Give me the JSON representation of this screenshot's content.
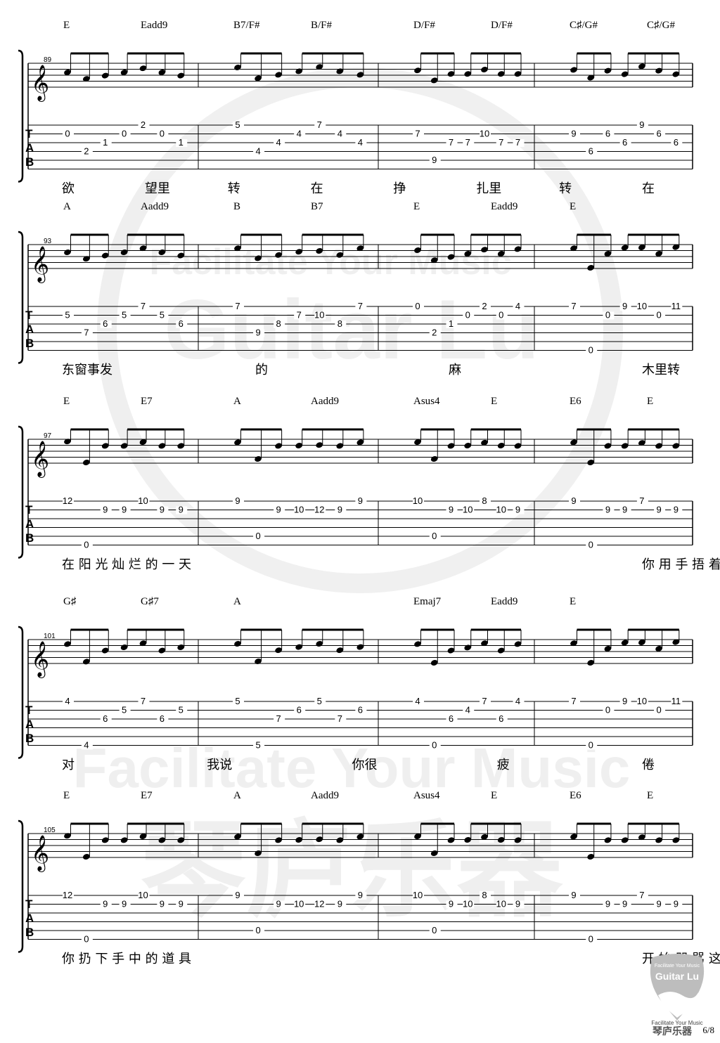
{
  "systems": [
    {
      "bar_start": "89",
      "chords": [
        "E",
        "Eadd9",
        "B7/F#",
        "B/F#",
        "D/F#",
        "D/F#",
        "C♯/G#",
        "C♯/G#"
      ],
      "tab": [
        {
          "s": 1,
          "f": "0"
        },
        {
          "s": 3,
          "f": "2"
        },
        {
          "s": 2,
          "f": "1"
        },
        {
          "s": 1,
          "f": "0"
        },
        {
          "s": 0,
          "f": "2"
        },
        {
          "s": 1,
          "f": "0"
        },
        {
          "s": 2,
          "f": "1"
        },
        {
          "s": 0,
          "f": "5"
        },
        {
          "s": 3,
          "f": "4"
        },
        {
          "s": 2,
          "f": "4"
        },
        {
          "s": 1,
          "f": "4"
        },
        {
          "s": 0,
          "f": "7"
        },
        {
          "s": 1,
          "f": "4"
        },
        {
          "s": 2,
          "f": "4"
        },
        {
          "s": 1,
          "f": "7"
        },
        {
          "s": 4,
          "f": "9"
        },
        {
          "s": 2,
          "f": "7"
        },
        {
          "s": 2,
          "f": "7"
        },
        {
          "s": 1,
          "f": "10"
        },
        {
          "s": 2,
          "f": "7"
        },
        {
          "s": 2,
          "f": "7"
        },
        {
          "s": 1,
          "f": "9"
        },
        {
          "s": 3,
          "f": "6"
        },
        {
          "s": 1,
          "f": "6"
        },
        {
          "s": 2,
          "f": "6"
        },
        {
          "s": 0,
          "f": "9"
        },
        {
          "s": 1,
          "f": "6"
        },
        {
          "s": 2,
          "f": "6"
        }
      ],
      "lyrics": [
        "欲",
        "望里",
        "转",
        "在",
        "挣",
        "扎里",
        "转",
        "在"
      ]
    },
    {
      "bar_start": "93",
      "chords": [
        "A",
        "Aadd9",
        "B",
        "B7",
        "E",
        "Eadd9",
        "E"
      ],
      "tab": [
        {
          "s": 1,
          "f": "5"
        },
        {
          "s": 3,
          "f": "7"
        },
        {
          "s": 2,
          "f": "6"
        },
        {
          "s": 1,
          "f": "5"
        },
        {
          "s": 0,
          "f": "7"
        },
        {
          "s": 1,
          "f": "5"
        },
        {
          "s": 2,
          "f": "6"
        },
        {
          "s": 0,
          "f": "7"
        },
        {
          "s": 3,
          "f": "9"
        },
        {
          "s": 2,
          "f": "8"
        },
        {
          "s": 1,
          "f": "7"
        },
        {
          "s": 1,
          "f": "10"
        },
        {
          "s": 2,
          "f": "8"
        },
        {
          "s": 0,
          "f": "7"
        },
        {
          "s": 0,
          "f": "0"
        },
        {
          "s": 3,
          "f": "2"
        },
        {
          "s": 2,
          "f": "1"
        },
        {
          "s": 1,
          "f": "0"
        },
        {
          "s": 0,
          "f": "2"
        },
        {
          "s": 1,
          "f": "0"
        },
        {
          "s": 0,
          "f": "4"
        },
        {
          "s": 0,
          "f": "7"
        },
        {
          "s": 5,
          "f": "0"
        },
        {
          "s": 1,
          "f": "0"
        },
        {
          "s": 0,
          "f": "9"
        },
        {
          "s": 0,
          "f": "10"
        },
        {
          "s": 1,
          "f": "0"
        },
        {
          "s": 0,
          "f": "11"
        }
      ],
      "lyrics": [
        "东窗事发",
        "的",
        "麻",
        "木里转"
      ]
    },
    {
      "bar_start": "97",
      "chords": [
        "E",
        "E7",
        "A",
        "Aadd9",
        "Asus4",
        "E",
        "E6",
        "E"
      ],
      "tab": [
        {
          "s": 0,
          "f": "12"
        },
        {
          "s": 5,
          "f": "0"
        },
        {
          "s": 1,
          "f": "9"
        },
        {
          "s": 1,
          "f": "9"
        },
        {
          "s": 0,
          "f": "10"
        },
        {
          "s": 1,
          "f": "9"
        },
        {
          "s": 1,
          "f": "9"
        },
        {
          "s": 0,
          "f": "9"
        },
        {
          "s": 4,
          "f": "0"
        },
        {
          "s": 1,
          "f": "9"
        },
        {
          "s": 1,
          "f": "10"
        },
        {
          "s": 1,
          "f": "12"
        },
        {
          "s": 1,
          "f": "9"
        },
        {
          "s": 0,
          "f": "9"
        },
        {
          "s": 0,
          "f": "10"
        },
        {
          "s": 4,
          "f": "0"
        },
        {
          "s": 1,
          "f": "9"
        },
        {
          "s": 1,
          "f": "10"
        },
        {
          "s": 0,
          "f": "8"
        },
        {
          "s": 1,
          "f": "10"
        },
        {
          "s": 1,
          "f": "9"
        },
        {
          "s": 0,
          "f": "9"
        },
        {
          "s": 5,
          "f": "0"
        },
        {
          "s": 1,
          "f": "9"
        },
        {
          "s": 1,
          "f": "9"
        },
        {
          "s": 0,
          "f": "7"
        },
        {
          "s": 1,
          "f": "9"
        },
        {
          "s": 1,
          "f": "9"
        }
      ],
      "lyrics": [
        "在 阳 光 灿 烂 的 一 天",
        "你 用 手 捂 着 你 的 脸"
      ]
    },
    {
      "bar_start": "101",
      "chords": [
        "G♯",
        "G♯7",
        "A",
        "Emaj7",
        "Eadd9",
        "E"
      ],
      "tab": [
        {
          "s": 0,
          "f": "4"
        },
        {
          "s": 5,
          "f": "4"
        },
        {
          "s": 2,
          "f": "6"
        },
        {
          "s": 1,
          "f": "5"
        },
        {
          "s": 0,
          "f": "7"
        },
        {
          "s": 2,
          "f": "6"
        },
        {
          "s": 1,
          "f": "5"
        },
        {
          "s": 0,
          "f": "5"
        },
        {
          "s": 5,
          "f": "5"
        },
        {
          "s": 2,
          "f": "7"
        },
        {
          "s": 1,
          "f": "6"
        },
        {
          "s": 0,
          "f": "5"
        },
        {
          "s": 2,
          "f": "7"
        },
        {
          "s": 1,
          "f": "6"
        },
        {
          "s": 0,
          "f": "4"
        },
        {
          "s": 5,
          "f": "0"
        },
        {
          "s": 2,
          "f": "6"
        },
        {
          "s": 1,
          "f": "4"
        },
        {
          "s": 0,
          "f": "7"
        },
        {
          "s": 2,
          "f": "6"
        },
        {
          "s": 0,
          "f": "4"
        },
        {
          "s": 0,
          "f": "7"
        },
        {
          "s": 5,
          "f": "0"
        },
        {
          "s": 1,
          "f": "0"
        },
        {
          "s": 0,
          "f": "9"
        },
        {
          "s": 0,
          "f": "10"
        },
        {
          "s": 1,
          "f": "0"
        },
        {
          "s": 0,
          "f": "11"
        }
      ],
      "lyrics": [
        "对",
        "我说",
        "你很",
        "疲",
        "倦"
      ]
    },
    {
      "bar_start": "105",
      "chords": [
        "E",
        "E7",
        "A",
        "Aadd9",
        "Asus4",
        "E",
        "E6",
        "E"
      ],
      "tab": [
        {
          "s": 0,
          "f": "12"
        },
        {
          "s": 5,
          "f": "0"
        },
        {
          "s": 1,
          "f": "9"
        },
        {
          "s": 1,
          "f": "9"
        },
        {
          "s": 0,
          "f": "10"
        },
        {
          "s": 1,
          "f": "9"
        },
        {
          "s": 1,
          "f": "9"
        },
        {
          "s": 0,
          "f": "9"
        },
        {
          "s": 4,
          "f": "0"
        },
        {
          "s": 1,
          "f": "9"
        },
        {
          "s": 1,
          "f": "10"
        },
        {
          "s": 1,
          "f": "12"
        },
        {
          "s": 1,
          "f": "9"
        },
        {
          "s": 0,
          "f": "9"
        },
        {
          "s": 0,
          "f": "10"
        },
        {
          "s": 4,
          "f": "0"
        },
        {
          "s": 1,
          "f": "9"
        },
        {
          "s": 1,
          "f": "10"
        },
        {
          "s": 0,
          "f": "8"
        },
        {
          "s": 1,
          "f": "10"
        },
        {
          "s": 1,
          "f": "9"
        },
        {
          "s": 0,
          "f": "9"
        },
        {
          "s": 5,
          "f": "0"
        },
        {
          "s": 1,
          "f": "9"
        },
        {
          "s": 1,
          "f": "9"
        },
        {
          "s": 0,
          "f": "7"
        },
        {
          "s": 1,
          "f": "9"
        },
        {
          "s": 1,
          "f": "9"
        }
      ],
      "lyrics": [
        "你 扔 下 手 中 的 道 具",
        "开 始 咒 骂 这 场 游 戏"
      ]
    }
  ],
  "tab_label": {
    "t": "T",
    "a": "A",
    "b": "B"
  },
  "watermark": {
    "line1": "Facilitate Your Music",
    "line2": "Guitar Lu",
    "line3": "Facilitate Your Music",
    "line4": "琴庐乐器"
  },
  "footer": {
    "logo_top": "Facilitate Your Music",
    "logo_brand": "Guitar Lu",
    "slogan": "Facilitate Your Music",
    "brand_cn": "琴庐乐器",
    "page": "6/8"
  }
}
